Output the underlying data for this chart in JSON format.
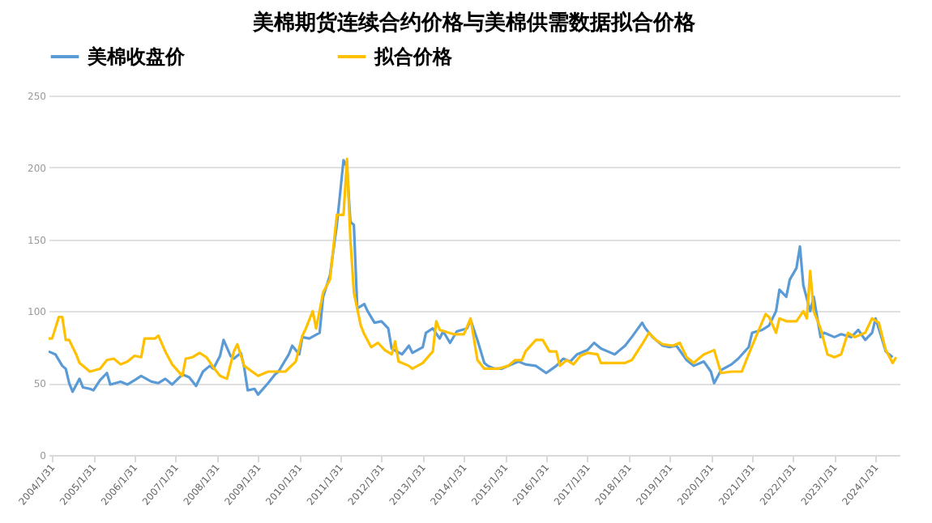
{
  "chart_data": {
    "type": "line",
    "title": "美棉期货连续合约价格与美棉供需数据拟合价格",
    "series": [
      {
        "name": "美棉收盘价",
        "color": "#5b9bd5",
        "x": [
          "2004-01",
          "2004-03",
          "2004-05",
          "2004-06",
          "2004-07",
          "2004-08",
          "2004-10",
          "2004-11",
          "2005-01",
          "2005-02",
          "2005-04",
          "2005-06",
          "2005-07",
          "2005-10",
          "2005-12",
          "2006-02",
          "2006-04",
          "2006-07",
          "2006-09",
          "2006-11",
          "2007-01",
          "2007-04",
          "2007-06",
          "2007-08",
          "2007-10",
          "2007-12",
          "2008-01",
          "2008-03",
          "2008-04",
          "2008-06",
          "2008-07",
          "2008-09",
          "2008-10",
          "2008-11",
          "2009-01",
          "2009-02",
          "2009-05",
          "2009-07",
          "2009-08",
          "2009-11",
          "2009-12",
          "2010-02",
          "2010-03",
          "2010-05",
          "2010-08",
          "2010-09",
          "2010-11",
          "2011-01",
          "2011-03",
          "2011-04",
          "2011-05",
          "2011-06",
          "2011-07",
          "2011-09",
          "2011-10",
          "2011-12",
          "2012-02",
          "2012-04",
          "2012-05",
          "2012-08",
          "2012-10",
          "2012-11",
          "2013-02",
          "2013-03",
          "2013-05",
          "2013-07",
          "2013-08",
          "2013-10",
          "2013-12",
          "2014-03",
          "2014-04",
          "2014-06",
          "2014-08",
          "2014-09",
          "2014-11",
          "2015-01",
          "2015-04",
          "2015-06",
          "2015-08",
          "2015-11",
          "2016-02",
          "2016-05",
          "2016-07",
          "2016-09",
          "2016-11",
          "2017-02",
          "2017-04",
          "2017-06",
          "2017-08",
          "2017-10",
          "2018-01",
          "2018-03",
          "2018-06",
          "2018-07",
          "2018-09",
          "2018-12",
          "2019-02",
          "2019-04",
          "2019-07",
          "2019-09",
          "2019-12",
          "2020-02",
          "2020-03",
          "2020-05",
          "2020-08",
          "2020-10",
          "2021-01",
          "2021-02",
          "2021-05",
          "2021-07",
          "2021-09",
          "2021-10",
          "2021-12",
          "2022-01",
          "2022-03",
          "2022-04",
          "2022-05",
          "2022-07",
          "2022-08",
          "2022-10",
          "2022-11",
          "2023-02",
          "2023-04",
          "2023-07",
          "2023-09",
          "2023-11",
          "2024-01",
          "2024-02",
          "2024-04",
          "2024-05",
          "2024-07"
        ],
        "values": [
          72,
          70,
          62,
          60,
          50,
          44,
          53,
          47,
          46,
          45,
          52,
          57,
          49,
          51,
          49,
          52,
          55,
          51,
          50,
          53,
          49,
          56,
          54,
          48,
          58,
          62,
          60,
          69,
          80,
          69,
          67,
          71,
          61,
          45,
          46,
          42,
          50,
          56,
          58,
          70,
          76,
          70,
          82,
          81,
          85,
          110,
          125,
          160,
          205,
          200,
          162,
          160,
          102,
          105,
          100,
          92,
          93,
          88,
          74,
          70,
          76,
          71,
          75,
          85,
          88,
          81,
          86,
          78,
          86,
          88,
          94,
          80,
          64,
          62,
          60,
          60,
          63,
          65,
          63,
          62,
          57,
          62,
          67,
          65,
          70,
          73,
          78,
          74,
          72,
          70,
          76,
          82,
          92,
          88,
          82,
          76,
          75,
          76,
          66,
          62,
          65,
          58,
          50,
          59,
          63,
          67,
          75,
          85,
          87,
          90,
          100,
          115,
          110,
          122,
          130,
          145,
          118,
          100,
          110,
          82,
          85,
          82,
          84,
          82,
          87,
          80,
          85,
          95,
          80,
          72,
          68
        ]
      },
      {
        "name": "拟合价格",
        "color": "#ffc000",
        "x": [
          "2004-01",
          "2004-02",
          "2004-04",
          "2004-05",
          "2004-06",
          "2004-07",
          "2004-09",
          "2004-10",
          "2005-01",
          "2005-04",
          "2005-06",
          "2005-08",
          "2005-10",
          "2005-12",
          "2006-02",
          "2006-04",
          "2006-05",
          "2006-08",
          "2006-09",
          "2006-11",
          "2007-01",
          "2007-04",
          "2007-05",
          "2007-07",
          "2007-09",
          "2007-11",
          "2008-01",
          "2008-03",
          "2008-05",
          "2008-07",
          "2008-08",
          "2008-10",
          "2009-02",
          "2009-05",
          "2009-10",
          "2010-01",
          "2010-03",
          "2010-04",
          "2010-06",
          "2010-07",
          "2010-09",
          "2010-11",
          "2011-01",
          "2011-03",
          "2011-04",
          "2011-05",
          "2011-06",
          "2011-08",
          "2011-09",
          "2011-11",
          "2012-01",
          "2012-03",
          "2012-05",
          "2012-06",
          "2012-07",
          "2012-10",
          "2012-11",
          "2013-02",
          "2013-05",
          "2013-06",
          "2013-07",
          "2013-11",
          "2014-02",
          "2014-04",
          "2014-06",
          "2014-08",
          "2014-12",
          "2015-03",
          "2015-05",
          "2015-07",
          "2015-08",
          "2015-11",
          "2016-01",
          "2016-03",
          "2016-05",
          "2016-06",
          "2016-08",
          "2016-10",
          "2016-12",
          "2017-02",
          "2017-05",
          "2017-06",
          "2017-10",
          "2018-01",
          "2018-03",
          "2018-06",
          "2018-08",
          "2018-10",
          "2018-12",
          "2019-03",
          "2019-05",
          "2019-07",
          "2019-09",
          "2019-12",
          "2020-02",
          "2020-03",
          "2020-05",
          "2020-08",
          "2020-11",
          "2021-01",
          "2021-04",
          "2021-06",
          "2021-07",
          "2021-09",
          "2021-10",
          "2021-12",
          "2022-02",
          "2022-03",
          "2022-05",
          "2022-06",
          "2022-07",
          "2022-08",
          "2022-10",
          "2022-12",
          "2023-02",
          "2023-04",
          "2023-06",
          "2023-08",
          "2023-11",
          "2024-01",
          "2024-03",
          "2024-05",
          "2024-07",
          "2024-08"
        ],
        "values": [
          81,
          81,
          96,
          96,
          80,
          80,
          70,
          64,
          58,
          60,
          66,
          67,
          63,
          65,
          69,
          68,
          81,
          81,
          83,
          72,
          63,
          55,
          67,
          68,
          71,
          68,
          61,
          55,
          53,
          72,
          77,
          62,
          55,
          58,
          58,
          65,
          83,
          88,
          100,
          88,
          113,
          122,
          167,
          167,
          206,
          150,
          113,
          90,
          84,
          75,
          78,
          73,
          70,
          79,
          65,
          62,
          60,
          64,
          72,
          93,
          87,
          84,
          84,
          95,
          66,
          60,
          60,
          62,
          66,
          66,
          72,
          80,
          80,
          72,
          72,
          62,
          66,
          63,
          69,
          71,
          70,
          64,
          64,
          64,
          66,
          77,
          85,
          80,
          77,
          76,
          78,
          68,
          64,
          70,
          72,
          73,
          57,
          58,
          58,
          70,
          87,
          98,
          96,
          85,
          95,
          93,
          93,
          93,
          100,
          95,
          128,
          100,
          88,
          70,
          68,
          70,
          85,
          82,
          85,
          95,
          92,
          73,
          64,
          68
        ]
      }
    ],
    "xlim": [
      "2004-01-01",
      "2024-09-01"
    ],
    "xticks": [
      {
        "value": "2004-01-31",
        "label": "2004/1/31"
      },
      {
        "value": "2005-01-31",
        "label": "2005/1/31"
      },
      {
        "value": "2006-01-31",
        "label": "2006/1/31"
      },
      {
        "value": "2007-01-31",
        "label": "2007/1/31"
      },
      {
        "value": "2008-01-31",
        "label": "2008/1/31"
      },
      {
        "value": "2009-01-31",
        "label": "2009/1/31"
      },
      {
        "value": "2010-01-31",
        "label": "2010/1/31"
      },
      {
        "value": "2011-01-31",
        "label": "2011/1/31"
      },
      {
        "value": "2012-01-31",
        "label": "2012/1/31"
      },
      {
        "value": "2013-01-31",
        "label": "2013/1/31"
      },
      {
        "value": "2014-01-31",
        "label": "2014/1/31"
      },
      {
        "value": "2015-01-31",
        "label": "2015/1/31"
      },
      {
        "value": "2016-01-31",
        "label": "2016/1/31"
      },
      {
        "value": "2017-01-31",
        "label": "2017/1/31"
      },
      {
        "value": "2018-01-31",
        "label": "2018/1/31"
      },
      {
        "value": "2019-01-31",
        "label": "2019/1/31"
      },
      {
        "value": "2020-01-31",
        "label": "2020/1/31"
      },
      {
        "value": "2021-01-31",
        "label": "2021/1/31"
      },
      {
        "value": "2022-01-31",
        "label": "2022/1/31"
      },
      {
        "value": "2023-01-31",
        "label": "2023/1/31"
      },
      {
        "value": "2024-01-31",
        "label": "2024/1/31"
      }
    ],
    "ylim": [
      0,
      250
    ],
    "yticks": [
      0,
      50,
      100,
      150,
      200,
      250
    ],
    "grid": "y",
    "legend": "top",
    "marker": "none",
    "line_style": "solid"
  }
}
